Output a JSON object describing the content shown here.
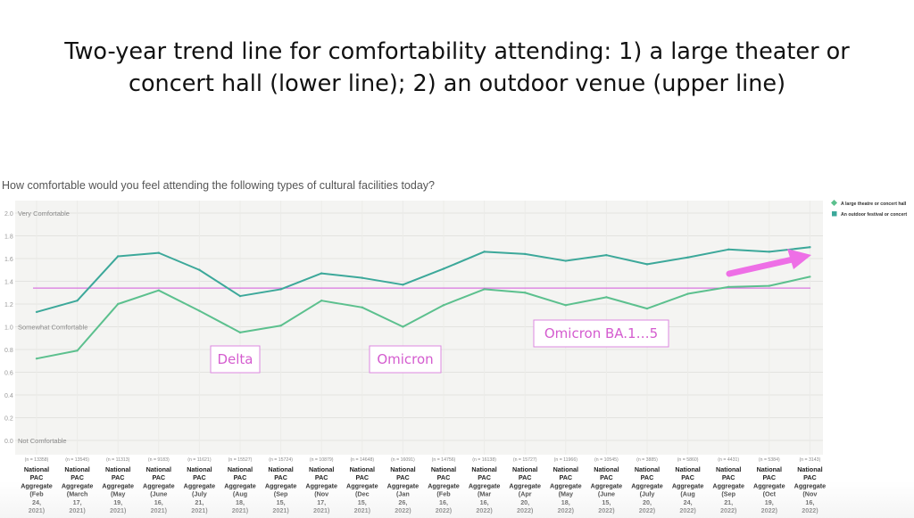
{
  "slide": {
    "title_line1": "Two-year trend line for comfortability attending: 1) a large theater or",
    "title_line2": "concert hall (lower line); 2) an outdoor venue (upper line)"
  },
  "chart_data": {
    "type": "line",
    "question": "How comfortable would you feel attending the following types of cultural facilities today?",
    "ylim": [
      0,
      2.0
    ],
    "yticks": [
      "2.0",
      "1.8",
      "1.6",
      "1.4",
      "1.2",
      "1.0",
      "0.8",
      "0.6",
      "0.4",
      "0.2",
      "0.0"
    ],
    "y_category_labels": [
      {
        "value": 2.0,
        "label": "Very Comfortable"
      },
      {
        "value": 1.0,
        "label": "Somewhat Comfortable"
      },
      {
        "value": 0.0,
        "label": "Not Comfortable"
      }
    ],
    "categories": [
      {
        "n": "(n = 13358)",
        "label": [
          "National",
          "PAC",
          "Aggregate",
          "(Feb",
          "24,",
          "2021)"
        ]
      },
      {
        "n": "(n = 13545)",
        "label": [
          "National",
          "PAC",
          "Aggregate",
          "(March",
          "17,",
          "2021)"
        ]
      },
      {
        "n": "(n = 11313)",
        "label": [
          "National",
          "PAC",
          "Aggregate",
          "(May",
          "19,",
          "2021)"
        ]
      },
      {
        "n": "(n = 9183)",
        "label": [
          "National",
          "PAC",
          "Aggregate",
          "(June",
          "16,",
          "2021)"
        ]
      },
      {
        "n": "(n = 11621)",
        "label": [
          "National",
          "PAC",
          "Aggregate",
          "(July",
          "21,",
          "2021)"
        ]
      },
      {
        "n": "(n = 15527)",
        "label": [
          "National",
          "PAC",
          "Aggregate",
          "(Aug",
          "18,",
          "2021)"
        ]
      },
      {
        "n": "(n = 15724)",
        "label": [
          "National",
          "PAC",
          "Aggregate",
          "(Sep",
          "15,",
          "2021)"
        ]
      },
      {
        "n": "(n = 10879)",
        "label": [
          "National",
          "PAC",
          "Aggregate",
          "(Nov",
          "17,",
          "2021)"
        ]
      },
      {
        "n": "(n = 14648)",
        "label": [
          "National",
          "PAC",
          "Aggregate",
          "(Dec",
          "15,",
          "2021)"
        ]
      },
      {
        "n": "(n = 16091)",
        "label": [
          "National",
          "PAC",
          "Aggregate",
          "(Jan",
          "26,",
          "2022)"
        ]
      },
      {
        "n": "(n = 14756)",
        "label": [
          "National",
          "PAC",
          "Aggregate",
          "(Feb",
          "16,",
          "2022)"
        ]
      },
      {
        "n": "(n = 16138)",
        "label": [
          "National",
          "PAC",
          "Aggregate",
          "(Mar",
          "16,",
          "2022)"
        ]
      },
      {
        "n": "(n = 15727)",
        "label": [
          "National",
          "PAC",
          "Aggregate",
          "(Apr",
          "20,",
          "2022)"
        ]
      },
      {
        "n": "(n = 11966)",
        "label": [
          "National",
          "PAC",
          "Aggregate",
          "(May",
          "18,",
          "2022)"
        ]
      },
      {
        "n": "(n = 10545)",
        "label": [
          "National",
          "PAC",
          "Aggregate",
          "(June",
          "15,",
          "2022)"
        ]
      },
      {
        "n": "(n = 3885)",
        "label": [
          "National",
          "PAC",
          "Aggregate",
          "(July",
          "20,",
          "2022)"
        ]
      },
      {
        "n": "(n = 5860)",
        "label": [
          "National",
          "PAC",
          "Aggregate",
          "(Aug",
          "24,",
          "2022)"
        ]
      },
      {
        "n": "(n = 4431)",
        "label": [
          "National",
          "PAC",
          "Aggregate",
          "(Sep",
          "21,",
          "2022)"
        ]
      },
      {
        "n": "(n = 5384)",
        "label": [
          "National",
          "PAC",
          "Aggregate",
          "(Oct",
          "19,",
          "2022)"
        ]
      },
      {
        "n": "(n = 3143)",
        "label": [
          "National",
          "PAC",
          "Aggregate",
          "(Nov",
          "16,",
          "2022)"
        ]
      }
    ],
    "series": [
      {
        "name": "A large theatre or concert hall",
        "color": "#5cc08e",
        "marker": "diamond",
        "values": [
          0.72,
          0.79,
          1.2,
          1.32,
          1.14,
          0.95,
          1.01,
          1.23,
          1.17,
          1.0,
          1.19,
          1.33,
          1.3,
          1.19,
          1.26,
          1.16,
          1.29,
          1.35,
          1.36,
          1.44
        ]
      },
      {
        "name": "An outdoor festival or concert",
        "color": "#3ca89a",
        "marker": "square",
        "values": [
          1.13,
          1.23,
          1.62,
          1.65,
          1.5,
          1.27,
          1.33,
          1.47,
          1.43,
          1.37,
          1.51,
          1.66,
          1.64,
          1.58,
          1.63,
          1.55,
          1.61,
          1.68,
          1.66,
          1.7
        ]
      }
    ],
    "reference_line": {
      "value": 1.34,
      "color": "#d977e0"
    },
    "annotations": [
      {
        "text": "Delta",
        "near_category": 5
      },
      {
        "text": "Omicron",
        "near_category": 9
      },
      {
        "text": "Omicron BA.1…5",
        "near_category": 15
      }
    ],
    "arrow_color": "#ee6fe6",
    "grid": true,
    "legend_position": "right"
  }
}
